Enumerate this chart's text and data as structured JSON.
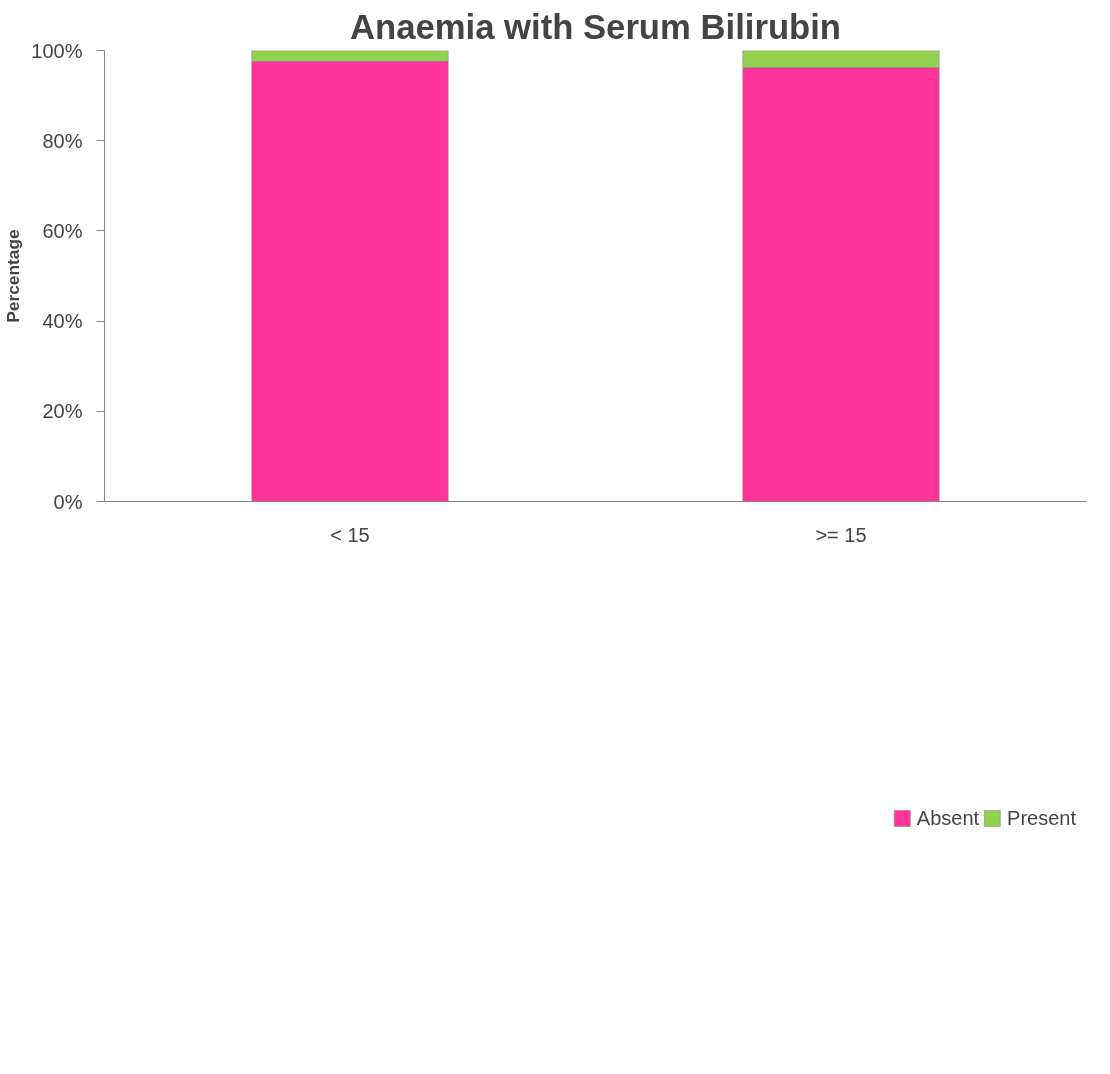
{
  "chart_data": {
    "type": "bar",
    "title": "Anaemia with Serum Bilirubin",
    "ylabel": "Percentage",
    "categories": [
      "< 15",
      ">= 15"
    ],
    "stacked": true,
    "series": [
      {
        "name": "Absent",
        "color": "#ff3399",
        "values": [
          97.6,
          96.2
        ]
      },
      {
        "name": "Present",
        "color": "#92d050",
        "values": [
          2.4,
          3.8
        ]
      }
    ],
    "ylim": [
      0,
      100
    ],
    "yticks": [
      {
        "value": 0,
        "label": "0%"
      },
      {
        "value": 20,
        "label": "20%"
      },
      {
        "value": 40,
        "label": "40%"
      },
      {
        "value": 60,
        "label": "60%"
      },
      {
        "value": 80,
        "label": "80%"
      },
      {
        "value": 100,
        "label": "100%"
      }
    ],
    "grid": false,
    "legend": "bottom"
  }
}
